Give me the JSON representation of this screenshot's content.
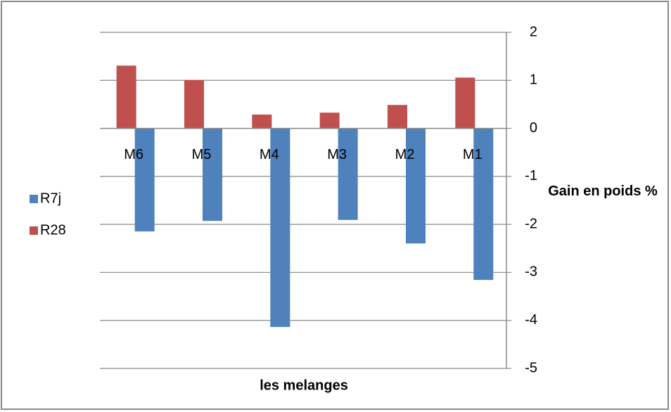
{
  "chart_data": {
    "type": "bar",
    "categories": [
      "M6",
      "M5",
      "M4",
      "M3",
      "M2",
      "M1"
    ],
    "series": [
      {
        "name": "R7j",
        "color": "#4f81bd",
        "values": [
          -2.14,
          -1.92,
          -4.13,
          -1.9,
          -2.39,
          -3.15
        ]
      },
      {
        "name": "R28",
        "color": "#c0504d",
        "values": [
          1.3,
          1.0,
          0.28,
          0.32,
          0.48,
          1.05
        ]
      }
    ],
    "ylim": [
      -5,
      2
    ],
    "yticks": [
      -5,
      -4,
      -3,
      -2,
      -1,
      0,
      1,
      2
    ],
    "ylabel": "Gain en poids %",
    "xlabel": "les melanges",
    "grid": true
  }
}
